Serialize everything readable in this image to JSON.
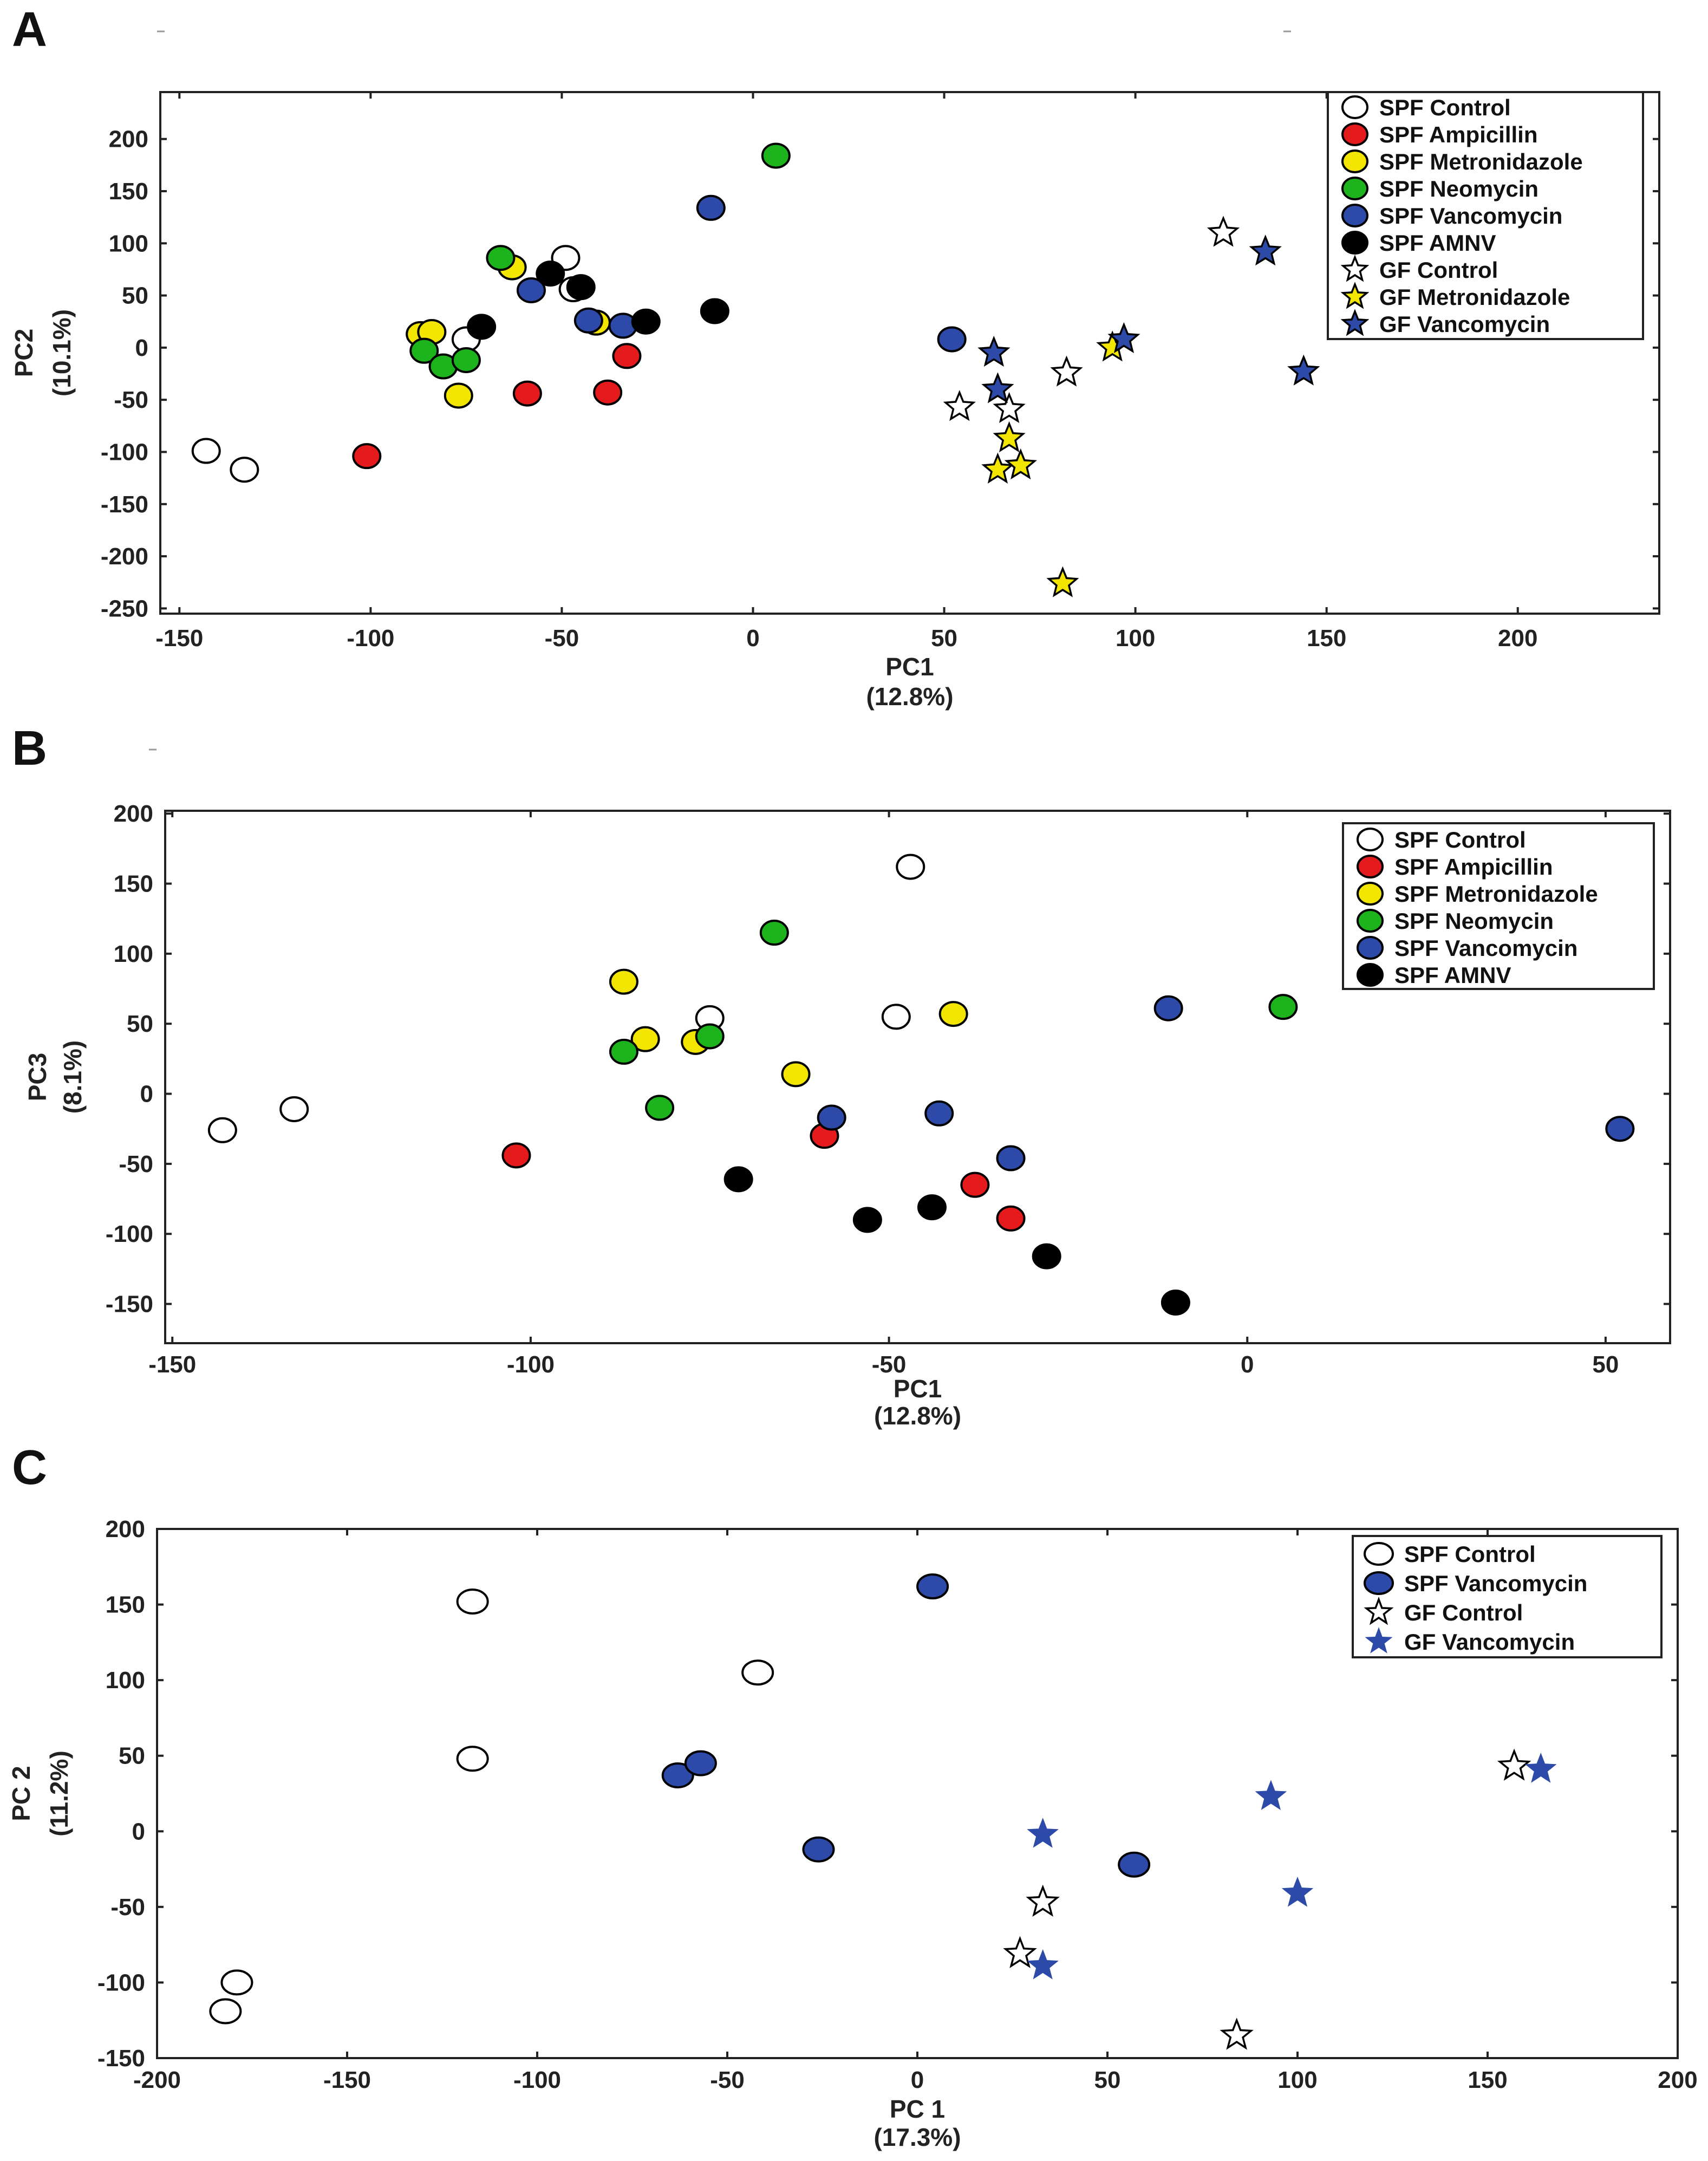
{
  "chart_data": [
    {
      "panel": "A",
      "type": "scatter",
      "xlabel": "PC1",
      "xlabel_pct": "(12.8%)",
      "ylabel": "PC2",
      "ylabel_pct": "(10.1%)",
      "xlim": [
        -155,
        237
      ],
      "ylim": [
        -255,
        245
      ],
      "xticks": [
        -150,
        -100,
        -50,
        0,
        50,
        100,
        150,
        200
      ],
      "yticks": [
        200,
        150,
        100,
        50,
        0,
        -50,
        -100,
        -150,
        -200,
        -250
      ],
      "legend": [
        {
          "label": "SPF Control",
          "marker": "circle",
          "color": "#ffffff"
        },
        {
          "label": "SPF Ampicillin",
          "marker": "circle",
          "color": "#e41a1c"
        },
        {
          "label": "SPF Metronidazole",
          "marker": "circle",
          "color": "#f2e600"
        },
        {
          "label": "SPF Neomycin",
          "marker": "circle",
          "color": "#1db31d"
        },
        {
          "label": "SPF Vancomycin",
          "marker": "circle",
          "color": "#2e4aa8"
        },
        {
          "label": "SPF AMNV",
          "marker": "circle",
          "color": "#000000"
        },
        {
          "label": "GF Control",
          "marker": "star",
          "color": "#ffffff"
        },
        {
          "label": "GF Metronidazole",
          "marker": "star",
          "color": "#f2e600"
        },
        {
          "label": "GF Vancomycin",
          "marker": "star",
          "color": "#2e4aa8"
        }
      ],
      "series": [
        {
          "name": "SPF Control",
          "marker": "circle",
          "color": "#ffffff",
          "points": [
            [
              -143,
              -99
            ],
            [
              -133,
              -117
            ],
            [
              -75,
              8
            ],
            [
              -49,
              86
            ],
            [
              -47,
              56
            ]
          ]
        },
        {
          "name": "SPF Ampicillin",
          "marker": "circle",
          "color": "#e41a1c",
          "points": [
            [
              -101,
              -104
            ],
            [
              -59,
              -44
            ],
            [
              -38,
              -43
            ],
            [
              -33,
              -8
            ]
          ]
        },
        {
          "name": "SPF Metronidazole",
          "marker": "circle",
          "color": "#f2e600",
          "points": [
            [
              -87,
              13
            ],
            [
              -84,
              15
            ],
            [
              -77,
              -46
            ],
            [
              -63,
              77
            ],
            [
              -41,
              24
            ]
          ]
        },
        {
          "name": "SPF Neomycin",
          "marker": "circle",
          "color": "#1db31d",
          "points": [
            [
              -86,
              -3
            ],
            [
              -81,
              -18
            ],
            [
              -75,
              -12
            ],
            [
              -66,
              86
            ],
            [
              6,
              184
            ]
          ]
        },
        {
          "name": "SPF Vancomycin",
          "marker": "circle",
          "color": "#2e4aa8",
          "points": [
            [
              -58,
              55
            ],
            [
              -43,
              26
            ],
            [
              -34,
              21
            ],
            [
              -11,
              134
            ],
            [
              52,
              8
            ]
          ]
        },
        {
          "name": "SPF AMNV",
          "marker": "circle",
          "color": "#000000",
          "points": [
            [
              -71,
              20
            ],
            [
              -53,
              71
            ],
            [
              -45,
              58
            ],
            [
              -28,
              25
            ],
            [
              -10,
              35
            ]
          ]
        },
        {
          "name": "GF Control",
          "marker": "star",
          "color": "#ffffff",
          "points": [
            [
              54,
              -57
            ],
            [
              67,
              -59
            ],
            [
              82,
              -24
            ],
            [
              123,
              110
            ]
          ]
        },
        {
          "name": "GF Metronidazole",
          "marker": "star",
          "color": "#f2e600",
          "points": [
            [
              64,
              -117
            ],
            [
              67,
              -87
            ],
            [
              70,
              -113
            ],
            [
              81,
              -226
            ],
            [
              94,
              0
            ]
          ]
        },
        {
          "name": "GF Vancomycin",
          "marker": "star",
          "color": "#2e4aa8",
          "points": [
            [
              63,
              -5
            ],
            [
              64,
              -40
            ],
            [
              97,
              8
            ],
            [
              134,
              92
            ],
            [
              144,
              -23
            ]
          ]
        }
      ]
    },
    {
      "panel": "B",
      "type": "scatter",
      "xlabel": "PC1",
      "xlabel_pct": "(12.8%)",
      "ylabel": "PC3",
      "ylabel_pct": "(8.1%)",
      "xlim": [
        -151,
        59
      ],
      "ylim": [
        -178,
        202
      ],
      "xticks": [
        -150,
        -100,
        -50,
        0,
        50
      ],
      "yticks": [
        200,
        150,
        100,
        50,
        0,
        -50,
        -100,
        -150
      ],
      "legend": [
        {
          "label": "SPF Control",
          "marker": "circle",
          "color": "#ffffff"
        },
        {
          "label": "SPF Ampicillin",
          "marker": "circle",
          "color": "#e41a1c"
        },
        {
          "label": "SPF Metronidazole",
          "marker": "circle",
          "color": "#f2e600"
        },
        {
          "label": "SPF Neomycin",
          "marker": "circle",
          "color": "#1db31d"
        },
        {
          "label": "SPF Vancomycin",
          "marker": "circle",
          "color": "#2e4aa8"
        },
        {
          "label": "SPF AMNV",
          "marker": "circle",
          "color": "#000000"
        }
      ],
      "series": [
        {
          "name": "SPF Control",
          "marker": "circle",
          "color": "#ffffff",
          "points": [
            [
              -143,
              -26
            ],
            [
              -133,
              -11
            ],
            [
              -75,
              54
            ],
            [
              -49,
              55
            ],
            [
              -47,
              162
            ]
          ]
        },
        {
          "name": "SPF Ampicillin",
          "marker": "circle",
          "color": "#e41a1c",
          "points": [
            [
              -102,
              -44
            ],
            [
              -59,
              -30
            ],
            [
              -38,
              -65
            ],
            [
              -33,
              -89
            ]
          ]
        },
        {
          "name": "SPF Metronidazole",
          "marker": "circle",
          "color": "#f2e600",
          "points": [
            [
              -87,
              80
            ],
            [
              -84,
              39
            ],
            [
              -77,
              37
            ],
            [
              -63,
              14
            ],
            [
              -41,
              57
            ]
          ]
        },
        {
          "name": "SPF Neomycin",
          "marker": "circle",
          "color": "#1db31d",
          "points": [
            [
              -87,
              30
            ],
            [
              -82,
              -10
            ],
            [
              -75,
              41
            ],
            [
              -66,
              115
            ],
            [
              5,
              62
            ]
          ]
        },
        {
          "name": "SPF Vancomycin",
          "marker": "circle",
          "color": "#2e4aa8",
          "points": [
            [
              -58,
              -17
            ],
            [
              -43,
              -14
            ],
            [
              -33,
              -46
            ],
            [
              -11,
              61
            ],
            [
              52,
              -25
            ]
          ]
        },
        {
          "name": "SPF AMNV",
          "marker": "circle",
          "color": "#000000",
          "points": [
            [
              -71,
              -61
            ],
            [
              -53,
              -90
            ],
            [
              -44,
              -81
            ],
            [
              -28,
              -116
            ],
            [
              -10,
              -149
            ]
          ]
        }
      ]
    },
    {
      "panel": "C",
      "type": "scatter",
      "xlabel": "PC 1",
      "xlabel_pct": "(17.3%)",
      "ylabel": "PC 2",
      "ylabel_pct": "(11.2%)",
      "xlim": [
        -200,
        200
      ],
      "ylim": [
        -150,
        200
      ],
      "xticks": [
        -200,
        -150,
        -100,
        -50,
        0,
        50,
        100,
        150,
        200
      ],
      "yticks": [
        200,
        150,
        100,
        50,
        0,
        -50,
        -100,
        -150
      ],
      "legend": [
        {
          "label": "SPF Control",
          "marker": "circle",
          "color": "#ffffff"
        },
        {
          "label": "SPF Vancomycin",
          "marker": "circle",
          "color": "#2e4aa8"
        },
        {
          "label": "GF Control",
          "marker": "star",
          "color": "#ffffff"
        },
        {
          "label": "GF Vancomycin",
          "marker": "star",
          "color": "#2e4aa8"
        }
      ],
      "series": [
        {
          "name": "SPF Control",
          "marker": "circle",
          "color": "#ffffff",
          "points": [
            [
              -182,
              -119
            ],
            [
              -179,
              -100
            ],
            [
              -117,
              152
            ],
            [
              -117,
              48
            ],
            [
              -42,
              105
            ]
          ]
        },
        {
          "name": "SPF Vancomycin",
          "marker": "circle",
          "color": "#2e4aa8",
          "points": [
            [
              -63,
              37
            ],
            [
              -57,
              45
            ],
            [
              -26,
              -12
            ],
            [
              4,
              162
            ],
            [
              57,
              -22
            ]
          ]
        },
        {
          "name": "GF Control",
          "marker": "star",
          "color": "#ffffff",
          "points": [
            [
              27,
              -81
            ],
            [
              33,
              -47
            ],
            [
              84,
              -135
            ],
            [
              157,
              43
            ]
          ]
        },
        {
          "name": "GF Vancomycin",
          "marker": "star",
          "color": "#2e4aa8",
          "points": [
            [
              33,
              -2
            ],
            [
              33,
              -89
            ],
            [
              93,
              23
            ],
            [
              100,
              -41
            ],
            [
              164,
              41
            ]
          ]
        }
      ]
    }
  ]
}
